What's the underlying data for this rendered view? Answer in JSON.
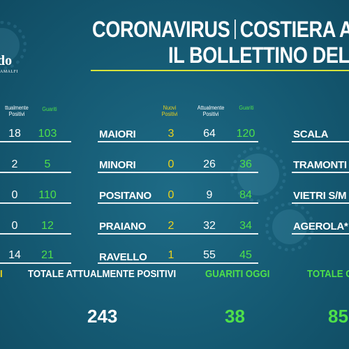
{
  "title": {
    "line1_left": "CORONAVIRUS",
    "line1_right": "COSTIERA A",
    "line2": "IL BOLLETTINO DEL"
  },
  "logo": {
    "text": "do",
    "sub": "AMALFI"
  },
  "headers": {
    "left_positivi": "ttualmente Positivi",
    "left_guariti": "Guariti",
    "mid_nuovi": "Nuovi Positivi",
    "mid_positivi": "Attualmente Positivi",
    "mid_guariti": "Guariti"
  },
  "left_rows": [
    {
      "positivi": "18",
      "guariti": "103"
    },
    {
      "positivi": "2",
      "guariti": "5"
    },
    {
      "positivi": "0",
      "guariti": "110"
    },
    {
      "positivi": "0",
      "guariti": "12"
    },
    {
      "positivi": "14",
      "guariti": "21"
    }
  ],
  "mid_rows": [
    {
      "town": "MAIORI",
      "nuovi": "3",
      "positivi": "64",
      "guariti": "120"
    },
    {
      "town": "MINORI",
      "nuovi": "0",
      "positivi": "26",
      "guariti": "36"
    },
    {
      "town": "POSITANO",
      "nuovi": "0",
      "positivi": "9",
      "guariti": "84"
    },
    {
      "town": "PRAIANO",
      "nuovi": "2",
      "positivi": "32",
      "guariti": "34"
    },
    {
      "town": "RAVELLO",
      "nuovi": "1",
      "positivi": "55",
      "guariti": "45"
    }
  ],
  "right_rows": [
    {
      "town": "SCALA"
    },
    {
      "town": "TRAMONTI"
    },
    {
      "town": "VIETRI S/M"
    },
    {
      "town": "AGEROLA*"
    }
  ],
  "totals": {
    "partial_left": "I",
    "positivi_label": "TOTALE ATTUALMENTE POSITIVI",
    "positivi_value": "243",
    "guariti_oggi_label": "GUARITI OGGI",
    "guariti_oggi_value": "38",
    "totale_g_label": "TOTALE G",
    "totale_g_value": "85"
  }
}
